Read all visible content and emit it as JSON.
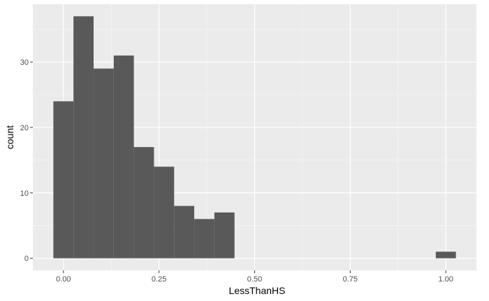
{
  "chart_data": {
    "type": "bar",
    "title": "",
    "xlabel": "LessThanHS",
    "ylabel": "count",
    "bin_width": 0.0526,
    "xlim": [
      -0.08,
      1.08
    ],
    "ylim": [
      -1.85,
      38.85
    ],
    "x_ticks": [
      0.0,
      0.25,
      0.5,
      0.75,
      1.0
    ],
    "x_tick_labels": [
      "0.00",
      "0.25",
      "0.50",
      "0.75",
      "1.00"
    ],
    "y_ticks": [
      0,
      10,
      20,
      30
    ],
    "y_tick_labels": [
      "0",
      "10",
      "20",
      "30"
    ],
    "bins": [
      {
        "x": 0.0,
        "count": 24
      },
      {
        "x": 0.0526,
        "count": 37
      },
      {
        "x": 0.1053,
        "count": 29
      },
      {
        "x": 0.1579,
        "count": 31
      },
      {
        "x": 0.2105,
        "count": 17
      },
      {
        "x": 0.2632,
        "count": 14
      },
      {
        "x": 0.3158,
        "count": 8
      },
      {
        "x": 0.3684,
        "count": 6
      },
      {
        "x": 0.4211,
        "count": 7
      },
      {
        "x": 0.4737,
        "count": 0
      },
      {
        "x": 0.5263,
        "count": 0
      },
      {
        "x": 0.5789,
        "count": 0
      },
      {
        "x": 0.6316,
        "count": 0
      },
      {
        "x": 0.6842,
        "count": 0
      },
      {
        "x": 0.7368,
        "count": 0
      },
      {
        "x": 0.7895,
        "count": 0
      },
      {
        "x": 0.8421,
        "count": 0
      },
      {
        "x": 0.8947,
        "count": 0
      },
      {
        "x": 0.9474,
        "count": 0
      },
      {
        "x": 1.0,
        "count": 1
      }
    ],
    "grid": true,
    "legend": "none",
    "colors": {
      "panel_background": "#ebebeb",
      "grid_major": "#ffffff",
      "bar_fill": "#595959"
    }
  }
}
